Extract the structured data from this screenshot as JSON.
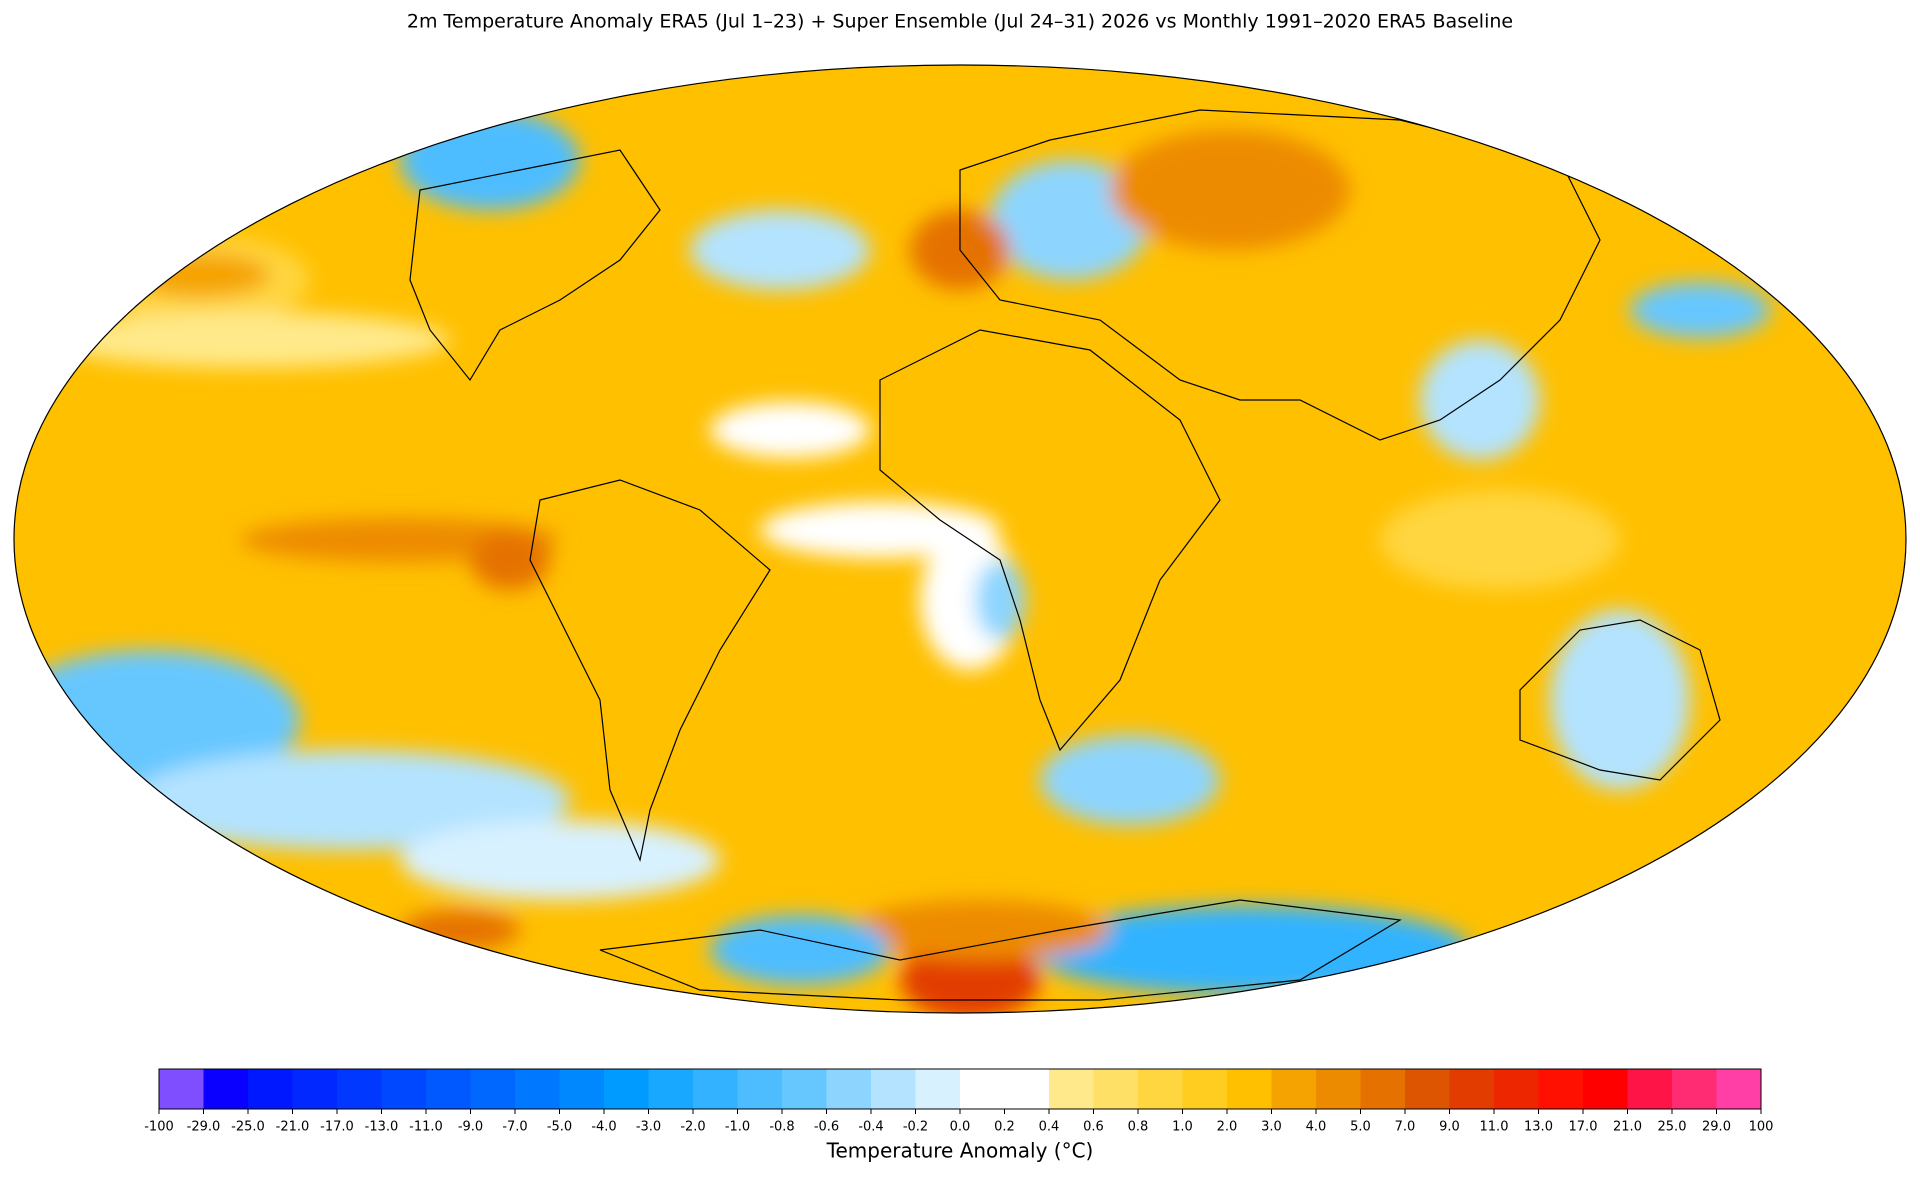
{
  "chart_data": {
    "type": "map",
    "title": "2m Temperature Anomaly  ERA5 (Jul 1–23) + Super Ensemble (Jul 24–31) 2026  vs Monthly 1991–2020 ERA5 Baseline",
    "colorbar": {
      "label": "Temperature Anomaly (°C)",
      "ticks": [
        -100,
        {
          "value": -29,
          "label": "-29.0"
        },
        {
          "value": -25,
          "label": "-25.0"
        },
        {
          "value": -21,
          "label": "-21.0"
        },
        {
          "value": -17,
          "label": "-17.0"
        },
        {
          "value": -13,
          "label": "-13.0"
        },
        {
          "value": -11,
          "label": "-11.0"
        },
        {
          "value": -9,
          "label": "-9.0"
        },
        {
          "value": -7,
          "label": "-7.0"
        },
        {
          "value": -5,
          "label": "-5.0"
        },
        {
          "value": -4,
          "label": "-4.0"
        },
        {
          "value": -3,
          "label": "-3.0"
        },
        {
          "value": -2,
          "label": "-2.0"
        },
        {
          "value": -1,
          "label": "-1.0"
        },
        -0.8,
        -0.6,
        -0.4,
        -0.2,
        {
          "value": 0,
          "label": "0.0"
        },
        0.2,
        0.4,
        0.6,
        0.8,
        {
          "value": 1,
          "label": "1.0"
        },
        {
          "value": 2,
          "label": "2.0"
        },
        {
          "value": 3,
          "label": "3.0"
        },
        {
          "value": 4,
          "label": "4.0"
        },
        {
          "value": 5,
          "label": "5.0"
        },
        {
          "value": 7,
          "label": "7.0"
        },
        {
          "value": 9,
          "label": "9.0"
        },
        {
          "value": 11,
          "label": "11.0"
        },
        {
          "value": 13,
          "label": "13.0"
        },
        {
          "value": 17,
          "label": "17.0"
        },
        {
          "value": 21,
          "label": "21.0"
        },
        {
          "value": 25,
          "label": "25.0"
        },
        {
          "value": 29,
          "label": "29.0"
        },
        100
      ],
      "colors": [
        "#7f4fff",
        "#0a00ff",
        "#0018ff",
        "#0028ff",
        "#0038ff",
        "#0048ff",
        "#0058ff",
        "#0068ff",
        "#0078ff",
        "#0088ff",
        "#009bff",
        "#18a8ff",
        "#33b3ff",
        "#4dbdff",
        "#66c7ff",
        "#8dd5ff",
        "#b3e3ff",
        "#d8f1ff",
        "#ffffff",
        "#ffffff",
        "#ffe98a",
        "#ffe066",
        "#ffd640",
        "#ffcc20",
        "#ffc000",
        "#f5a300",
        "#ed8b00",
        "#e57200",
        "#dd5500",
        "#e23c00",
        "#ee2600",
        "#ff1000",
        "#ff0000",
        "#ff1448",
        "#ff2c74",
        "#ff3ea6"
      ]
    }
  }
}
